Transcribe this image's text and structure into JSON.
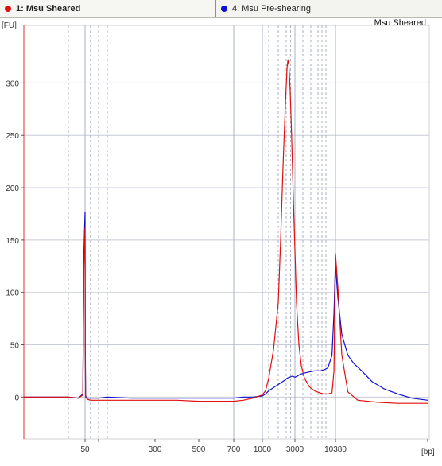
{
  "tabs": [
    {
      "label": "1: Msu Sheared",
      "color": "#e01010"
    },
    {
      "label": "4: Msu Pre-shearing",
      "color": "#1010d0"
    }
  ],
  "chart_data": {
    "type": "line",
    "title": "Msu Sheared",
    "ylabel": "[FU]",
    "xlabel": "[bp]",
    "ylim": [
      -40,
      355
    ],
    "y_ticks": [
      0,
      50,
      100,
      150,
      200,
      250,
      300
    ],
    "x_ticks": [
      {
        "label": "50",
        "x": 50
      },
      {
        "label": "",
        "x": 75
      },
      {
        "label": "300",
        "x": 300
      },
      {
        "label": "500",
        "x": 500
      },
      {
        "label": "700",
        "x": 700
      },
      {
        "label": "1000",
        "x": 1000
      },
      {
        "label": "3000",
        "x": 3000
      },
      {
        "label": "10380",
        "x": 10380
      },
      {
        "label": "",
        "x": 15000
      }
    ],
    "x_gridlines": [
      35,
      50,
      60,
      75,
      100,
      700,
      1000,
      1200,
      1500,
      2000,
      2500,
      3000,
      4000,
      5000,
      6000,
      7000,
      8000,
      10380
    ],
    "grid": true,
    "series": [
      {
        "name": "1: Msu Sheared",
        "color": "#e01010",
        "points": [
          [
            15,
            0
          ],
          [
            35,
            0
          ],
          [
            44,
            -1
          ],
          [
            48,
            2
          ],
          [
            49,
            125
          ],
          [
            50,
            162
          ],
          [
            50.5,
            40
          ],
          [
            51,
            0
          ],
          [
            54,
            -2
          ],
          [
            60,
            -3
          ],
          [
            75,
            -3
          ],
          [
            100,
            -3
          ],
          [
            200,
            -3
          ],
          [
            300,
            -3
          ],
          [
            400,
            -3
          ],
          [
            500,
            -4
          ],
          [
            600,
            -4
          ],
          [
            700,
            -4
          ],
          [
            800,
            -3
          ],
          [
            900,
            -1
          ],
          [
            1000,
            2
          ],
          [
            1100,
            6
          ],
          [
            1200,
            18
          ],
          [
            1350,
            45
          ],
          [
            1500,
            90
          ],
          [
            1650,
            150
          ],
          [
            1800,
            220
          ],
          [
            1950,
            280
          ],
          [
            2100,
            315
          ],
          [
            2200,
            322
          ],
          [
            2300,
            318
          ],
          [
            2450,
            295
          ],
          [
            2600,
            255
          ],
          [
            2800,
            195
          ],
          [
            3000,
            140
          ],
          [
            3200,
            90
          ],
          [
            3500,
            50
          ],
          [
            3800,
            30
          ],
          [
            4200,
            18
          ],
          [
            4800,
            10
          ],
          [
            5500,
            6
          ],
          [
            6500,
            4
          ],
          [
            7500,
            3
          ],
          [
            8500,
            3
          ],
          [
            9500,
            4
          ],
          [
            10000,
            25
          ],
          [
            10250,
            100
          ],
          [
            10380,
            137
          ],
          [
            10500,
            105
          ],
          [
            10700,
            40
          ],
          [
            11000,
            5
          ],
          [
            11500,
            -3
          ],
          [
            12500,
            -5
          ],
          [
            13500,
            -6
          ],
          [
            14500,
            -6
          ],
          [
            15000,
            -6
          ]
        ]
      },
      {
        "name": "4: Msu Pre-shearing",
        "color": "#1010d0",
        "points": [
          [
            15,
            0
          ],
          [
            35,
            0
          ],
          [
            44,
            -1
          ],
          [
            48,
            3
          ],
          [
            49,
            140
          ],
          [
            50,
            177
          ],
          [
            50.5,
            50
          ],
          [
            51,
            1
          ],
          [
            54,
            -1
          ],
          [
            60,
            -1
          ],
          [
            75,
            -1
          ],
          [
            100,
            0
          ],
          [
            200,
            -1
          ],
          [
            300,
            -1
          ],
          [
            400,
            -1
          ],
          [
            500,
            -1
          ],
          [
            600,
            -1
          ],
          [
            700,
            -1
          ],
          [
            800,
            0
          ],
          [
            900,
            0
          ],
          [
            1000,
            1
          ],
          [
            1100,
            3
          ],
          [
            1200,
            6
          ],
          [
            1350,
            9
          ],
          [
            1500,
            12
          ],
          [
            1700,
            14
          ],
          [
            1900,
            16
          ],
          [
            2100,
            18
          ],
          [
            2400,
            19
          ],
          [
            2700,
            20
          ],
          [
            3000,
            19
          ],
          [
            3300,
            20
          ],
          [
            3700,
            22
          ],
          [
            4200,
            23
          ],
          [
            4800,
            24
          ],
          [
            5500,
            25
          ],
          [
            6500,
            25
          ],
          [
            7500,
            26
          ],
          [
            8500,
            28
          ],
          [
            9500,
            40
          ],
          [
            10000,
            80
          ],
          [
            10300,
            120
          ],
          [
            10380,
            127
          ],
          [
            10500,
            95
          ],
          [
            10700,
            60
          ],
          [
            11000,
            40
          ],
          [
            11300,
            32
          ],
          [
            11700,
            25
          ],
          [
            12200,
            15
          ],
          [
            12800,
            8
          ],
          [
            13500,
            3
          ],
          [
            14200,
            -1
          ],
          [
            15000,
            -3
          ]
        ]
      }
    ]
  }
}
